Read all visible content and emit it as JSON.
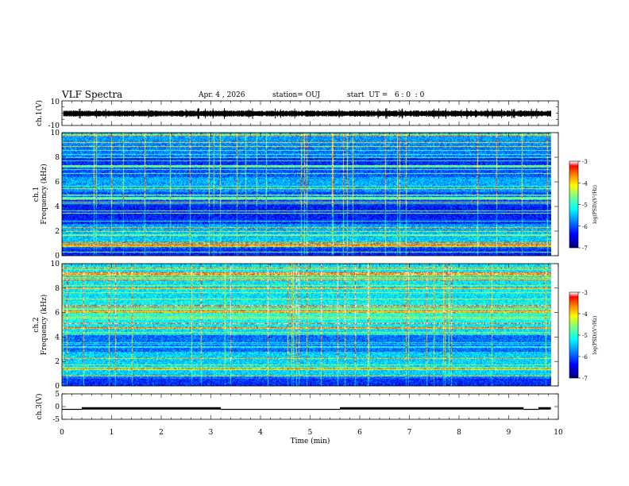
{
  "header": {
    "title": "VLF Spectra",
    "date": "Apr. 4 , 2026",
    "station": "station= OUJ",
    "start_ut": "start  UT =   6 : 0  : 0"
  },
  "colors": {
    "colormap": [
      "#00007f",
      "#0000ff",
      "#007fff",
      "#00ffff",
      "#7fff7f",
      "#ffff00",
      "#ff7f00",
      "#ff0000",
      "#ffffff"
    ]
  },
  "chart_data": [
    {
      "type": "line",
      "name": "ch1-waveform",
      "ylabel": "ch.1(V)",
      "yticks": [
        "10",
        "-10"
      ],
      "ylim": [
        -10,
        10
      ],
      "xlim": [
        0,
        10
      ],
      "level": 0.1
    },
    {
      "type": "heatmap",
      "name": "ch1-spectrogram",
      "ylabel_lines": [
        "ch.1",
        "Frequency  (kHz)"
      ],
      "yticks": [
        "0",
        "2",
        "4",
        "6",
        "8",
        "10"
      ],
      "ylim": [
        0,
        10
      ],
      "xlim": [
        0,
        10
      ],
      "colorbar": {
        "ticks": [
          "-3",
          "-4",
          "-5",
          "-6",
          "-7"
        ],
        "range": [
          -7,
          -3
        ],
        "label": "log(PSD)(V²/Hz)"
      }
    },
    {
      "type": "heatmap",
      "name": "ch2-spectrogram",
      "ylabel_lines": [
        "ch.2",
        "Frequency  (kHz)"
      ],
      "yticks": [
        "0",
        "2",
        "4",
        "6",
        "8",
        "10"
      ],
      "ylim": [
        0,
        10
      ],
      "xlim": [
        0,
        10
      ],
      "colorbar": {
        "ticks": [
          "-3",
          "-4",
          "-5",
          "-6",
          "-7"
        ],
        "range": [
          -7,
          -3
        ],
        "label": "log(PSD)(V²/Hz)"
      }
    },
    {
      "type": "line",
      "name": "ch3-trace",
      "ylabel": "ch.3(V)",
      "yticks": [
        "5",
        "0",
        "-5"
      ],
      "ylim": [
        -5,
        5
      ],
      "xlim": [
        0,
        10
      ],
      "segments": [
        {
          "x": [
            0.0,
            0.4
          ],
          "y": -1.1
        },
        {
          "x": [
            0.4,
            3.2
          ],
          "y": -0.7
        },
        {
          "x": [
            3.2,
            5.6
          ],
          "y": -1.1
        },
        {
          "x": [
            5.6,
            9.3
          ],
          "y": -0.7
        },
        {
          "x": [
            9.3,
            9.6
          ],
          "y": -1.1
        },
        {
          "x": [
            9.6,
            9.85
          ],
          "y": -0.7
        }
      ],
      "xlabel": "Time  (min)",
      "xticks": [
        "0",
        "1",
        "2",
        "3",
        "4",
        "5",
        "6",
        "7",
        "8",
        "9",
        "10"
      ]
    }
  ]
}
